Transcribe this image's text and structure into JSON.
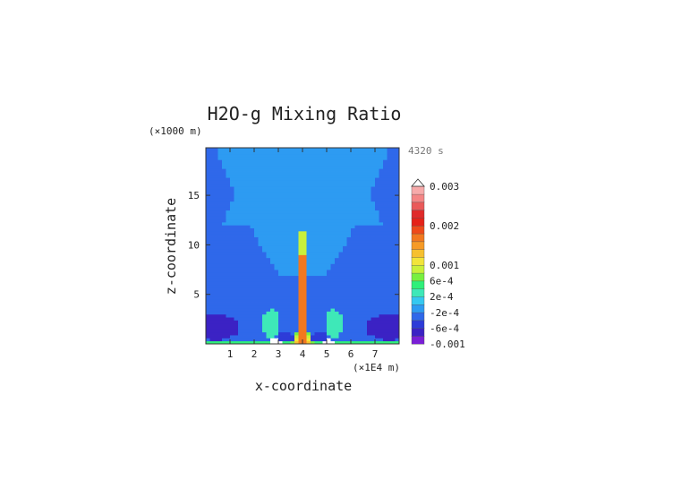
{
  "chart_data": {
    "type": "heatmap",
    "title": "H2O-g Mixing Ratio",
    "xlabel": "x-coordinate",
    "ylabel": "z-coordinate",
    "x_unit": "(×1E4 m)",
    "y_unit": "(×1000 m)",
    "time_label": "4320 s",
    "xlim": [
      0,
      8
    ],
    "ylim": [
      0,
      19.8
    ],
    "x_ticks": [
      1,
      2,
      3,
      4,
      5,
      6,
      7
    ],
    "y_ticks": [
      5,
      10,
      15
    ],
    "x_tick_labels": [
      "1",
      "2",
      "3",
      "4",
      "5",
      "6",
      "7"
    ],
    "y_tick_labels": [
      "5",
      "10",
      "15"
    ],
    "levels": [
      -0.001,
      -0.0008,
      -0.0006,
      -0.0004,
      -0.0002,
      0,
      0.0002,
      0.0004,
      0.0006,
      0.0008,
      0.001,
      0.0012,
      0.0014,
      0.0016,
      0.0018,
      0.002,
      0.0022,
      0.0024,
      0.0026,
      0.0028,
      0.003
    ],
    "level_colors": [
      "#7a1fd6",
      "#3b22c4",
      "#2d3bd8",
      "#2f68ea",
      "#2d9bf2",
      "#35c8f0",
      "#3ee8b8",
      "#2ff07a",
      "#78f040",
      "#c9f03a",
      "#f2e43a",
      "#f6c030",
      "#f69a26",
      "#f2781f",
      "#ee4a1a",
      "#e52218",
      "#e02a2a",
      "#ea5a5a",
      "#f48585",
      "#f7aaaa"
    ],
    "colorbar_labels": [
      {
        "value": 0.003,
        "text": "0.003"
      },
      {
        "value": 0.002,
        "text": "0.002"
      },
      {
        "value": 0.001,
        "text": "0.001"
      },
      {
        "value": 0.0006,
        "text": "6e-4"
      },
      {
        "value": 0.0002,
        "text": "2e-4"
      },
      {
        "value": -0.0002,
        "text": "-2e-4"
      },
      {
        "value": -0.0006,
        "text": "-6e-4"
      },
      {
        "value": -0.001,
        "text": "-0.001"
      }
    ],
    "background_value": -0.0003,
    "field_features": [
      {
        "kind": "surface_layer",
        "value": 0.0005,
        "z_top": 0.2
      },
      {
        "kind": "upper_plume",
        "value": -0.0001,
        "x_center": 4.0,
        "half_width_at_top": 3.6,
        "half_width_at_base": 0.9,
        "z_base": 7.0,
        "z_top": 19.8
      },
      {
        "kind": "side_lobes",
        "value": -0.0001,
        "x_centers": [
          2.1,
          5.9
        ],
        "z_range": [
          12.0,
          16.5
        ],
        "x_half_width": 1.4
      },
      {
        "kind": "core_column",
        "value": 0.0026,
        "x_center": 4.0,
        "half_width": 0.1,
        "z_top": 9.0
      },
      {
        "kind": "core_column",
        "value": 0.0012,
        "x_center": 4.0,
        "half_width": 0.18,
        "z_top": 11.5
      },
      {
        "kind": "base_spread",
        "value": 0.0016,
        "x_center": 4.0,
        "half_width": 0.55,
        "z_top": 2.2
      },
      {
        "kind": "anvil_lobes",
        "value": 0.0002,
        "x_centers": [
          2.7,
          5.3
        ],
        "z_range": [
          0.6,
          3.5
        ]
      },
      {
        "kind": "cold_pool",
        "value": -0.0008,
        "x_centers": [
          0.4,
          7.6
        ],
        "z_range": [
          0.4,
          3.0
        ]
      },
      {
        "kind": "cold_pool",
        "value": -0.0006,
        "x_centers": [
          3.3,
          4.7
        ],
        "z_range": [
          0.2,
          1.2
        ]
      },
      {
        "kind": "min_spot",
        "value": -0.0012,
        "x_centers": [
          2.9,
          5.1
        ],
        "z_center": 0.25
      }
    ]
  }
}
